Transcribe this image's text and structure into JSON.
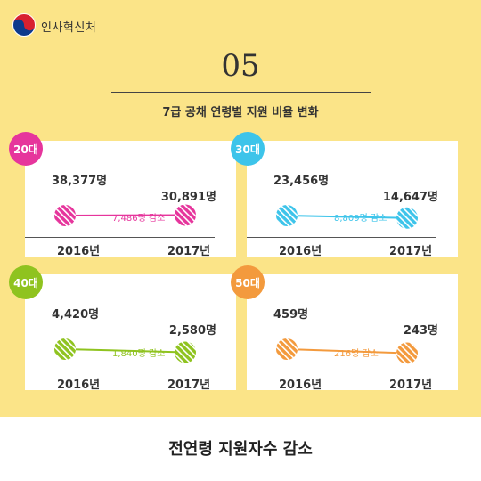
{
  "header": {
    "org_name": "인사혁신처"
  },
  "section_number": "05",
  "subtitle": "7급 공채 연령별 지원 비율 변화",
  "footer_text": "전연령 지원자수 감소",
  "chart_data": [
    {
      "type": "line",
      "badge": "20대",
      "color": "#e6359c",
      "x": [
        "2016년",
        "2017년"
      ],
      "values": [
        38377,
        30891
      ],
      "value_labels": [
        "38,377명",
        "30,891명"
      ],
      "difference_label": "7,486명 감소"
    },
    {
      "type": "line",
      "badge": "30대",
      "color": "#3dc4ea",
      "x": [
        "2016년",
        "2017년"
      ],
      "values": [
        23456,
        14647
      ],
      "value_labels": [
        "23,456명",
        "14,647명"
      ],
      "difference_label": "8,809명 감소"
    },
    {
      "type": "line",
      "badge": "40대",
      "color": "#8fc31f",
      "x": [
        "2016년",
        "2017년"
      ],
      "values": [
        4420,
        2580
      ],
      "value_labels": [
        "4,420명",
        "2,580명"
      ],
      "difference_label": "1,840명 감소"
    },
    {
      "type": "line",
      "badge": "50대",
      "color": "#f39a3d",
      "x": [
        "2016년",
        "2017년"
      ],
      "values": [
        459,
        243
      ],
      "value_labels": [
        "459명",
        "243명"
      ],
      "difference_label": "216명 감소"
    }
  ]
}
